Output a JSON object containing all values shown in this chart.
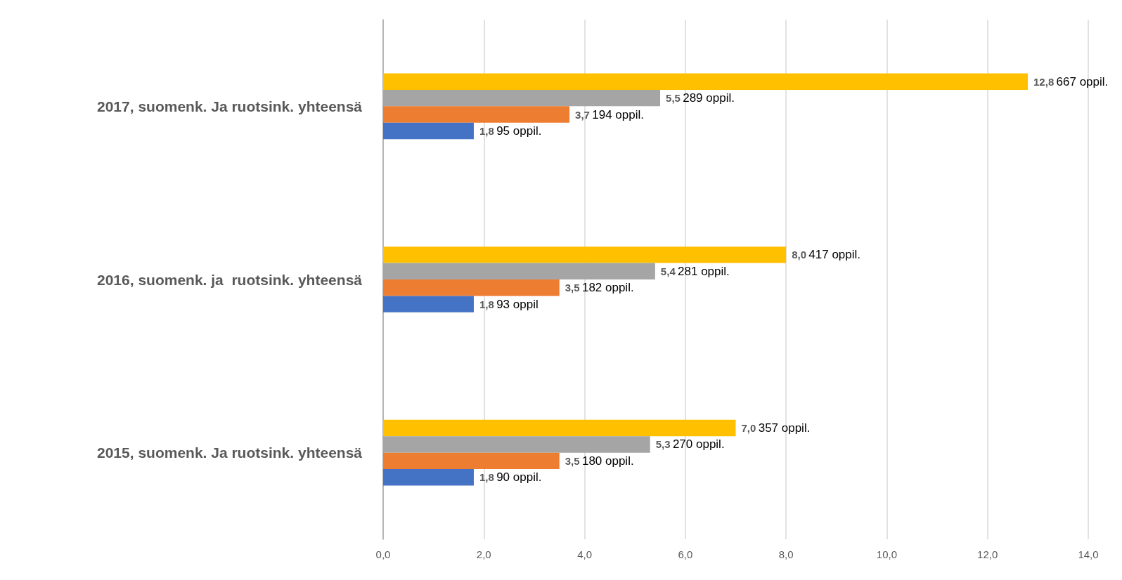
{
  "chart_data": {
    "type": "bar",
    "orientation": "horizontal",
    "categories": [
      "2017, suomenk. Ja ruotsink. yhteensä",
      "2016, suomenk. ja  ruotsink. yhteensä",
      "2015, suomenk. Ja ruotsink. yhteensä"
    ],
    "series": [
      {
        "color": "#4472c4",
        "values": [
          1.8,
          1.8,
          1.8
        ],
        "value_labels": [
          "1,8 95 oppil.",
          "1,8 93 oppil",
          "1,8 90 oppil."
        ]
      },
      {
        "color": "#ed7d31",
        "values": [
          3.7,
          3.5,
          3.5
        ],
        "value_labels": [
          "3,7 194 oppil.",
          "3,5 182 oppil.",
          "3,5 180 oppil."
        ]
      },
      {
        "color": "#a5a5a5",
        "values": [
          5.5,
          5.4,
          5.3
        ],
        "value_labels": [
          "5,5 289 oppil.",
          "5,4 281 oppil.",
          "5,3 270 oppil."
        ]
      },
      {
        "color": "#ffc000",
        "values": [
          12.8,
          8.0,
          7.0
        ],
        "value_labels": [
          "12,8 667 oppil.",
          "8,0 417 oppil.",
          "7,0 357 oppil."
        ]
      }
    ],
    "xlim": [
      0,
      14
    ],
    "xticks": [
      {
        "value": 0,
        "label": "0,0"
      },
      {
        "value": 2,
        "label": "2,0"
      },
      {
        "value": 4,
        "label": "4,0"
      },
      {
        "value": 6,
        "label": "6,0"
      },
      {
        "value": 8,
        "label": "8,0"
      },
      {
        "value": 10,
        "label": "10,0"
      },
      {
        "value": 12,
        "label": "12,0"
      },
      {
        "value": 14,
        "label": "14,0"
      }
    ],
    "grid": "x"
  }
}
